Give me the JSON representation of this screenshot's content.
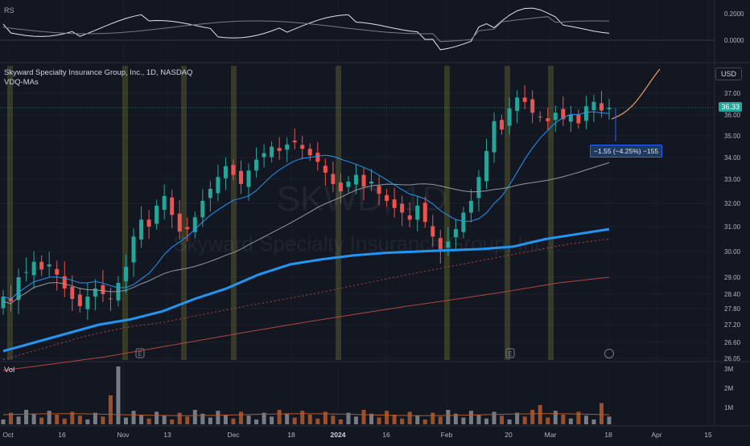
{
  "header": {
    "title": "Skyward Specialty Insurance Group, Inc., 1D, NASDAQ",
    "indicator_label": "VDQ-MAs",
    "rs_label": "RS",
    "vol_label": "Vol",
    "currency": "USD",
    "watermark_ticker": "SKWD, 1D",
    "watermark_name": "Skyward Specialty Insurance Group, Inc."
  },
  "price_tag": "36.33",
  "measure_tag": "−1.55 (−4.25%) −155",
  "colors": {
    "background": "#131722",
    "up": "#26a69a",
    "down": "#ef5350",
    "ma_blue": "#2196f3",
    "ma_gray": "#9598a1",
    "ma_red": "#b2473a",
    "projection": "#f0a060",
    "highlight_bar": "#787b2a",
    "vol_up": "#8a8d94",
    "vol_down": "#b45a2c"
  },
  "chart_data": {
    "type": "candlestick",
    "title": "Skyward Specialty Insurance Group, Inc., 1D, NASDAQ",
    "x_ticks": [
      "Oct",
      "16",
      "Nov",
      "13",
      "Dec",
      "18",
      "2024",
      "16",
      "Feb",
      "20",
      "Mar",
      "18",
      "Apr",
      "15"
    ],
    "y_ticks": [
      "37.00",
      "36.00",
      "35.00",
      "34.00",
      "33.00",
      "32.00",
      "31.00",
      "30.00",
      "29.00",
      "28.40",
      "27.80",
      "27.20",
      "26.60",
      "26.05"
    ],
    "rs_ticks": [
      "0.2000",
      "0.0000"
    ],
    "vol_ticks": [
      "3M",
      "2M",
      "1M"
    ],
    "last_price": 36.33,
    "price_range_shown": [
      26.05,
      37.4
    ],
    "series": [
      {
        "name": "candles (approx. closes, Oct 2023 – Mar 2024)",
        "values": [
          28.3,
          28.1,
          29.0,
          29.2,
          29.6,
          29.3,
          29.5,
          29.1,
          28.6,
          28.2,
          27.9,
          28.3,
          28.6,
          28.4,
          28.2,
          28.8,
          29.4,
          30.6,
          31.3,
          31.0,
          31.9,
          32.3,
          31.5,
          30.8,
          30.9,
          31.4,
          32.1,
          32.6,
          33.1,
          33.6,
          33.2,
          32.8,
          33.4,
          33.9,
          34.2,
          34.5,
          34.3,
          34.6,
          34.7,
          34.4,
          34.1,
          33.8,
          33.3,
          32.8,
          32.5,
          32.9,
          33.2,
          32.7,
          32.9,
          32.4,
          32.1,
          31.8,
          31.6,
          31.3,
          31.9,
          31.2,
          30.6,
          30.1,
          30.4,
          30.9,
          31.6,
          32.1,
          33.1,
          34.3,
          35.7,
          35.3,
          36.3,
          36.8,
          36.6,
          36.1,
          35.9,
          35.7,
          36.1,
          35.8,
          36.0,
          35.6,
          36.4,
          36.6,
          36.2,
          36.33
        ]
      },
      {
        "name": "MA (thick blue)",
        "values": [
          26.3,
          26.6,
          26.9,
          27.2,
          27.4,
          27.7,
          28.2,
          28.6,
          29.1,
          29.5,
          29.7,
          29.85,
          29.95,
          30.0,
          30.05,
          30.1,
          30.2,
          30.5,
          30.7,
          30.9
        ]
      }
    ],
    "grid": true,
    "legend": "top-left"
  }
}
